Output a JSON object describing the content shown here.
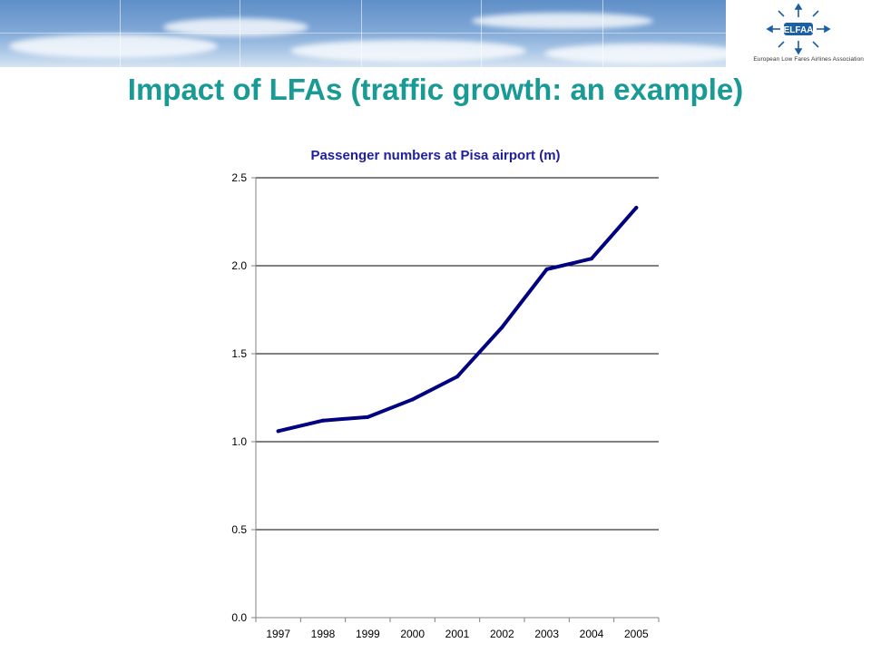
{
  "header": {
    "logo_text": "ELFAA",
    "logo_tagline": "European Low Fares Airlines Association",
    "colors": {
      "banner_sky": "#6f9bd0",
      "title": "#1a9a94"
    }
  },
  "slide": {
    "title": "Impact of LFAs (traffic growth: an example)"
  },
  "chart_data": {
    "type": "line",
    "title": "Passenger numbers at Pisa airport (m)",
    "xlabel": "",
    "ylabel": "",
    "categories": [
      "1997",
      "1998",
      "1999",
      "2000",
      "2001",
      "2002",
      "2003",
      "2004",
      "2005"
    ],
    "series": [
      {
        "values": [
          1.06,
          1.12,
          1.14,
          1.24,
          1.37,
          1.65,
          1.98,
          2.04,
          2.33
        ],
        "color": "#000080"
      }
    ],
    "ylim": [
      0,
      2.5
    ],
    "yticks": [
      0.0,
      0.5,
      1.0,
      1.5,
      2.0,
      2.5
    ],
    "ytick_labels": [
      "0.0",
      "0.5",
      "1.0",
      "1.5",
      "2.0",
      "2.5"
    ],
    "grid": "horizontal",
    "legend": "none",
    "colors": {
      "axis": "#808080",
      "grid": "#000000",
      "title": "#1f1f9a"
    }
  }
}
